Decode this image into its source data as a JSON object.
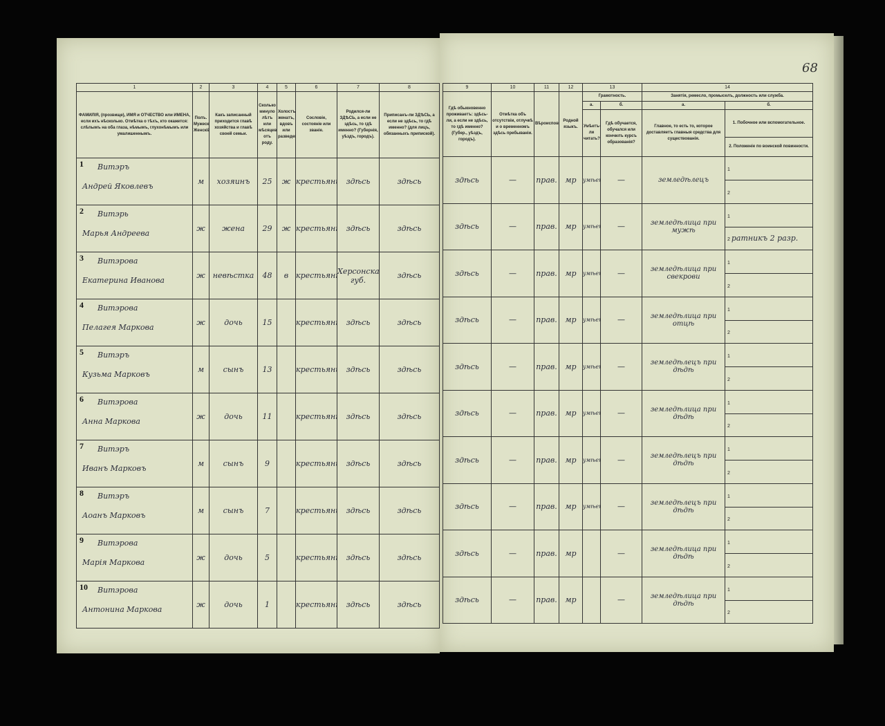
{
  "page_number": "68",
  "left_headers": [
    {
      "n": "1",
      "t": "ФАМИЛІЯ, (прозвище), ИМЯ и ОТЧЕСТВО или ИМЕНА, если ихъ нѣсколько. Отмѣтка о тѣхъ, кто окажется: слѣпымъ на оба глаза, нѣмымъ, глухонѣмымъ или умалишеннымъ."
    },
    {
      "n": "2",
      "t": "Полъ. Мужескій. Женскій."
    },
    {
      "n": "3",
      "t": "Какъ записанный приходится главѣ хозяйства и главѣ своей семьи."
    },
    {
      "n": "4",
      "t": "Сколько минуло лѣтъ или мѣсяцевъ отъ роду."
    },
    {
      "n": "5",
      "t": "Холостъ, женатъ, вдовъ или разведенъ."
    },
    {
      "n": "6",
      "t": "Сословіе, состояніе или званіе."
    },
    {
      "n": "7",
      "t": "Родился-ли ЗДѢСЬ, а если не здѣсь, то гдѣ именно? (Губернія, уѣздъ, городъ)."
    },
    {
      "n": "8",
      "t": "Приписанъ-ли ЗДѢСЬ, а если не здѣсь, то гдѣ именно? (для лицъ, обязанныхъ припиской)."
    }
  ],
  "right_headers": {
    "c9": {
      "n": "9",
      "t": "Гдѣ обыкновенно проживаетъ: здѣсь-ли, а если не здѣсь, то гдѣ именно? (Губер., уѣздъ, городъ)."
    },
    "c10": {
      "n": "10",
      "t": "Отмѣтка объ отсутствіи, отлучкѣ и о временномъ здѣсь пребываніи."
    },
    "c11": {
      "n": "11",
      "t": "Вѣроисповѣданіе."
    },
    "c12": {
      "n": "12",
      "t": "Родной языкъ."
    },
    "c13": {
      "n": "13",
      "t": "Грамотность.",
      "a": "а.",
      "a_t": "Умѣетъ-ли читать?",
      "b": "б.",
      "b_t": "Гдѣ обучается, обучался или кончилъ курсъ образованія?"
    },
    "c14": {
      "n": "14",
      "t": "Занятія, ремесло, промыселъ, должность или служба.",
      "a": "а.",
      "a_t": "Главное, то есть то, которое доставляетъ главныя средства для существованія.",
      "b": "б.",
      "b1": "1. Побочное или вспомогательное.",
      "b2": "2. Положеніе по воинской повинности."
    }
  },
  "rows": [
    {
      "no": "1",
      "surname": "Витэръ",
      "name": "Андрей Яковлевъ",
      "sex": "м",
      "rel": "хозяинъ",
      "age": "25",
      "mar": "ж",
      "est": "крестьянинъ",
      "born": "здѣсь",
      "reg": "здѣсь",
      "live": "здѣсь",
      "abs": "—",
      "rel_c": "прав.",
      "lang": "мр",
      "lit": "умѣетъ",
      "edu": "—",
      "occ": "земледѣлецъ",
      "s1": "",
      "s2": ""
    },
    {
      "no": "2",
      "surname": "Витэрь",
      "name": "Марья Андреева",
      "sex": "ж",
      "rel": "жена",
      "age": "29",
      "mar": "ж",
      "est": "крестьянка",
      "born": "здѣсь",
      "reg": "здѣсь",
      "live": "здѣсь",
      "abs": "—",
      "rel_c": "прав.",
      "lang": "мр",
      "lit": "умѣетъ",
      "edu": "—",
      "occ": "земледѣлица при мужѣ",
      "s1": "",
      "s2": "ратникъ 2 разр."
    },
    {
      "no": "3",
      "surname": "Витэрова",
      "name": "Екатерина Иванова",
      "sex": "ж",
      "rel": "невѣстка",
      "age": "48",
      "mar": "в",
      "est": "крестьянка",
      "born": "Херсонская губ.",
      "reg": "здѣсь",
      "live": "здѣсь",
      "abs": "—",
      "rel_c": "прав.",
      "lang": "мр",
      "lit": "умѣетъ",
      "edu": "—",
      "occ": "земледѣлица при свекрови",
      "s1": "",
      "s2": ""
    },
    {
      "no": "4",
      "surname": "Витэрова",
      "name": "Пелагея Маркова",
      "sex": "ж",
      "rel": "дочь",
      "age": "15",
      "mar": "",
      "est": "крестьянка",
      "born": "здѣсь",
      "reg": "здѣсь",
      "live": "здѣсь",
      "abs": "—",
      "rel_c": "прав.",
      "lang": "мр",
      "lit": "умѣетъ",
      "edu": "—",
      "occ": "земледѣлица при отцѣ",
      "s1": "",
      "s2": ""
    },
    {
      "no": "5",
      "surname": "Витэръ",
      "name": "Кузьма Марковъ",
      "sex": "м",
      "rel": "сынъ",
      "age": "13",
      "mar": "",
      "est": "крестьянинъ",
      "born": "здѣсь",
      "reg": "здѣсь",
      "live": "здѣсь",
      "abs": "—",
      "rel_c": "прав.",
      "lang": "мр",
      "lit": "умѣетъ",
      "edu": "—",
      "occ": "земледѣлецъ при дѣдѣ",
      "s1": "",
      "s2": ""
    },
    {
      "no": "6",
      "surname": "Витэрова",
      "name": "Анна Маркова",
      "sex": "ж",
      "rel": "дочь",
      "age": "11",
      "mar": "",
      "est": "крестьянка",
      "born": "здѣсь",
      "reg": "здѣсь",
      "live": "здѣсь",
      "abs": "—",
      "rel_c": "прав.",
      "lang": "мр",
      "lit": "умѣетъ",
      "edu": "—",
      "occ": "земледѣлица при дѣдѣ",
      "s1": "",
      "s2": ""
    },
    {
      "no": "7",
      "surname": "Витэръ",
      "name": "Иванъ Марковъ",
      "sex": "м",
      "rel": "сынъ",
      "age": "9",
      "mar": "",
      "est": "крестьянинъ",
      "born": "здѣсь",
      "reg": "здѣсь",
      "live": "здѣсь",
      "abs": "—",
      "rel_c": "прав.",
      "lang": "мр",
      "lit": "умѣетъ",
      "edu": "—",
      "occ": "земледѣлецъ при дѣдѣ",
      "s1": "",
      "s2": ""
    },
    {
      "no": "8",
      "surname": "Витэръ",
      "name": "Аоанъ Марковъ",
      "sex": "м",
      "rel": "сынъ",
      "age": "7",
      "mar": "",
      "est": "крестьянинъ",
      "born": "здѣсь",
      "reg": "здѣсь",
      "live": "здѣсь",
      "abs": "—",
      "rel_c": "прав.",
      "lang": "мр",
      "lit": "умѣетъ",
      "edu": "—",
      "occ": "земледѣлецъ при дѣдѣ",
      "s1": "",
      "s2": ""
    },
    {
      "no": "9",
      "surname": "Витэрова",
      "name": "Марія Маркова",
      "sex": "ж",
      "rel": "дочь",
      "age": "5",
      "mar": "",
      "est": "крестьянка",
      "born": "здѣсь",
      "reg": "здѣсь",
      "live": "здѣсь",
      "abs": "—",
      "rel_c": "прав.",
      "lang": "мр",
      "lit": "",
      "edu": "—",
      "occ": "земледѣлица при дѣдѣ",
      "s1": "",
      "s2": ""
    },
    {
      "no": "10",
      "surname": "Витэрова",
      "name": "Антонина Маркова",
      "sex": "ж",
      "rel": "дочь",
      "age": "1",
      "mar": "",
      "est": "крестьянка",
      "born": "здѣсь",
      "reg": "здѣсь",
      "live": "здѣсь",
      "abs": "—",
      "rel_c": "прав.",
      "lang": "мр",
      "lit": "",
      "edu": "—",
      "occ": "земледѣлица при дѣдѣ",
      "s1": "",
      "s2": ""
    }
  ]
}
